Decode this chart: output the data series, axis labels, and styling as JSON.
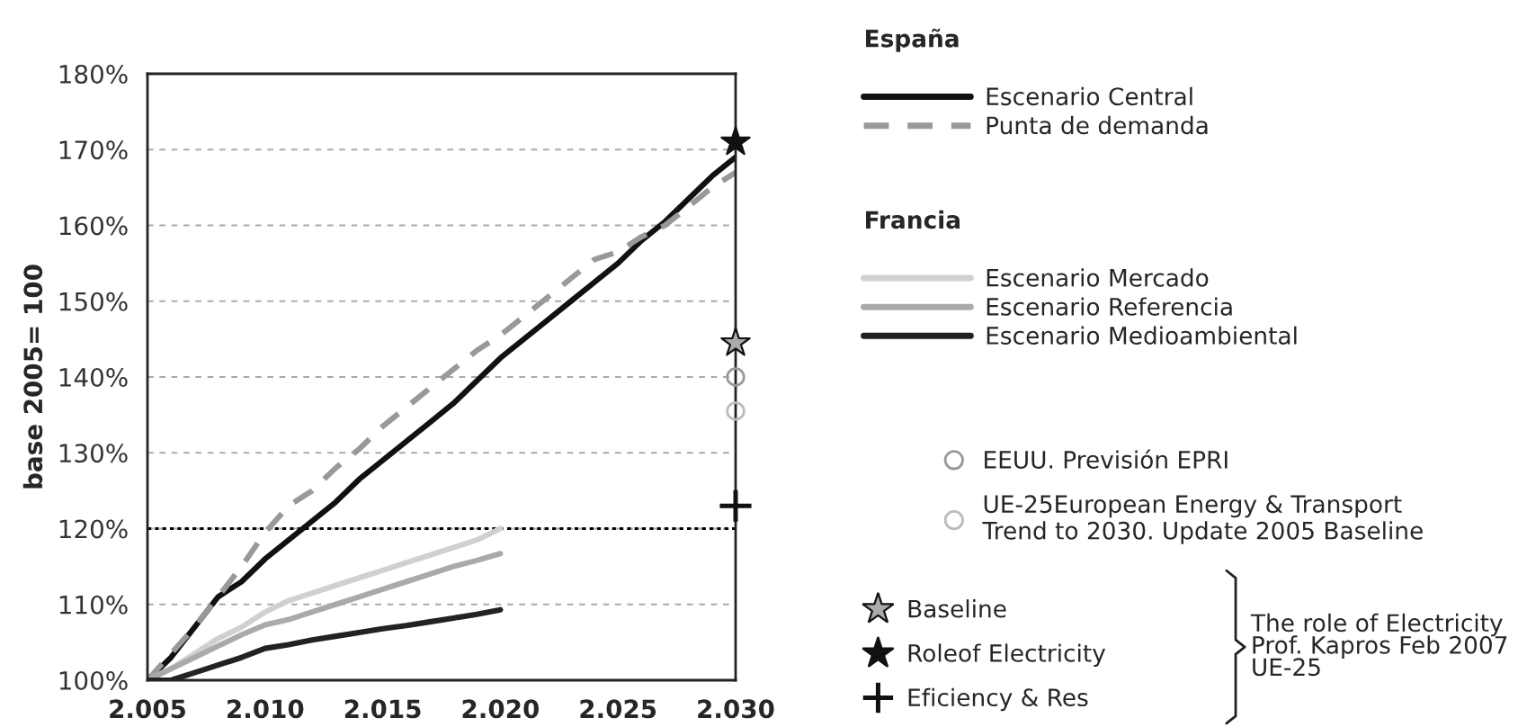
{
  "chart_data": {
    "type": "line",
    "ylabel": "base 2005= 100",
    "xlim": [
      2005,
      2030
    ],
    "xticks": [
      {
        "value": 2005,
        "label": "2.005"
      },
      {
        "value": 2010,
        "label": "2.010"
      },
      {
        "value": 2015,
        "label": "2.015"
      },
      {
        "value": 2020,
        "label": "2.020"
      },
      {
        "value": 2025,
        "label": "2.025"
      },
      {
        "value": 2030,
        "label": "2.030"
      }
    ],
    "ylim": [
      100,
      180
    ],
    "yticks": [
      {
        "value": 100,
        "label": "100%"
      },
      {
        "value": 110,
        "label": "110%"
      },
      {
        "value": 120,
        "label": "120%"
      },
      {
        "value": 130,
        "label": "130%"
      },
      {
        "value": 140,
        "label": "140%"
      },
      {
        "value": 150,
        "label": "150%"
      },
      {
        "value": 160,
        "label": "160%"
      },
      {
        "value": 170,
        "label": "170%"
      },
      {
        "value": 180,
        "label": "180%"
      }
    ],
    "grid": "y",
    "legend": "right",
    "ref_lines": [
      {
        "axis": "y",
        "value": 120,
        "color": "#000000",
        "line_style": "dotted"
      }
    ],
    "annotations": [
      "España",
      "Francia",
      "The role of Electricity\nProf. Kapros Feb 2007\nUE-25"
    ],
    "series": [
      {
        "name": "Escenario Central",
        "color": "#111111",
        "line_style": "solid",
        "x": [
          2005,
          2006,
          2007,
          2008,
          2009,
          2010,
          2011,
          2012,
          2013,
          2014,
          2015,
          2016,
          2017,
          2018,
          2019,
          2020,
          2021,
          2022,
          2023,
          2024,
          2025,
          2026,
          2027,
          2028,
          2029,
          2030
        ],
        "values": [
          100,
          103,
          107,
          111,
          113,
          116,
          118.5,
          121,
          123.5,
          126.5,
          129,
          131.5,
          134,
          136.5,
          139.5,
          142.5,
          145,
          147.5,
          150,
          152.5,
          155,
          158,
          160.5,
          163.5,
          166.5,
          169
        ]
      },
      {
        "name": "Punta de demanda",
        "color": "#999999",
        "line_style": "dashed",
        "x": [
          2005,
          2006,
          2007,
          2008,
          2009,
          2010,
          2011,
          2012,
          2013,
          2014,
          2015,
          2016,
          2017,
          2018,
          2019,
          2020,
          2021,
          2022,
          2023,
          2024,
          2025,
          2026,
          2027,
          2028,
          2029,
          2030
        ],
        "values": [
          100,
          103.5,
          107,
          111,
          115,
          119.5,
          123,
          125,
          128,
          130.5,
          133.5,
          136,
          138.5,
          141,
          143.5,
          145.5,
          148,
          150.5,
          153,
          155.5,
          156.5,
          158.5,
          160,
          162.5,
          165,
          167
        ]
      },
      {
        "name": "Escenario Mercado",
        "color": "#d0d0d0",
        "line_style": "solid",
        "x": [
          2005,
          2006,
          2007,
          2008,
          2009,
          2010,
          2011,
          2012,
          2013,
          2014,
          2015,
          2016,
          2017,
          2018,
          2019,
          2020
        ],
        "values": [
          100,
          101.5,
          103.5,
          105.5,
          107,
          109,
          110.5,
          111.5,
          112.5,
          113.5,
          114.5,
          115.5,
          116.5,
          117.5,
          118.5,
          120
        ]
      },
      {
        "name": "Escenario Referencia",
        "color": "#aaaaaa",
        "line_style": "solid",
        "x": [
          2005,
          2006,
          2007,
          2008,
          2009,
          2010,
          2011,
          2012,
          2013,
          2014,
          2015,
          2016,
          2017,
          2018,
          2019,
          2020
        ],
        "values": [
          100,
          101.5,
          103,
          104.5,
          106,
          107.3,
          108,
          109,
          110,
          111,
          112,
          113,
          114,
          115,
          115.8,
          116.7
        ]
      },
      {
        "name": "Escenario Medioambiental",
        "color": "#222222",
        "line_style": "solid",
        "x": [
          2005,
          2006,
          2007,
          2008,
          2009,
          2010,
          2011,
          2012,
          2013,
          2014,
          2015,
          2016,
          2017,
          2018,
          2019,
          2020
        ],
        "values": [
          100,
          100,
          101,
          102,
          103,
          104.2,
          104.7,
          105.3,
          105.8,
          106.3,
          106.8,
          107.2,
          107.7,
          108.2,
          108.7,
          109.3
        ]
      },
      {
        "name": "EEUU. Previsión EPRI",
        "type": "scatter",
        "marker": "circle",
        "color": "#999999",
        "x": [
          2030
        ],
        "values": [
          140
        ]
      },
      {
        "name": "UE-25European Energy & Transport\nTrend to 2030. Update 2005 Baseline",
        "type": "scatter",
        "marker": "circle",
        "color": "#bbbbbb",
        "x": [
          2030
        ],
        "values": [
          135.5
        ]
      },
      {
        "name": "Baseline",
        "type": "scatter",
        "marker": "star",
        "color": "#aaaaaa",
        "x": [
          2030
        ],
        "values": [
          144.5
        ]
      },
      {
        "name": "Roleof Electricity",
        "type": "scatter",
        "marker": "star",
        "color": "#111111",
        "x": [
          2030
        ],
        "values": [
          171
        ]
      },
      {
        "name": "Eficiency & Res",
        "type": "scatter",
        "marker": "cross",
        "color": "#111111",
        "x": [
          2030
        ],
        "values": [
          123
        ]
      }
    ]
  }
}
